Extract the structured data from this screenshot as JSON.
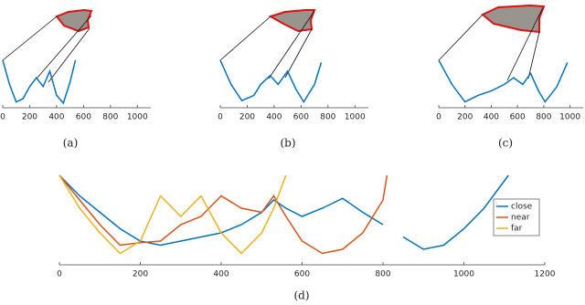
{
  "chart_data": [
    {
      "type": "line",
      "caption": "(a)",
      "xlim": [
        0,
        1100
      ],
      "ylim": [
        0,
        1
      ],
      "xticks": [
        0,
        200,
        400,
        600,
        800,
        1000
      ],
      "x": [
        0,
        50,
        100,
        150,
        200,
        250,
        300,
        350,
        400,
        450,
        500,
        540
      ],
      "series": [
        {
          "color": "#0072bd",
          "values": [
            1,
            0.45,
            0.05,
            0.12,
            0.4,
            0.6,
            0.4,
            0.75,
            0.2,
            0.02,
            0.5,
            1
          ]
        }
      ]
    },
    {
      "type": "line",
      "caption": "(b)",
      "xlim": [
        0,
        1100
      ],
      "ylim": [
        0,
        1
      ],
      "xticks": [
        0,
        200,
        400,
        600,
        800,
        1000
      ],
      "x": [
        0,
        80,
        160,
        250,
        300,
        370,
        430,
        500,
        560,
        620,
        700,
        750
      ],
      "series": [
        {
          "color": "#0072bd",
          "values": [
            1,
            0.45,
            0.08,
            0.2,
            0.45,
            0.65,
            0.45,
            0.75,
            0.35,
            0.05,
            0.45,
            0.95
          ]
        }
      ]
    },
    {
      "type": "line",
      "caption": "(c)",
      "xlim": [
        0,
        1100
      ],
      "ylim": [
        0,
        1
      ],
      "xticks": [
        0,
        200,
        400,
        600,
        800,
        1000
      ],
      "x": [
        0,
        100,
        200,
        300,
        400,
        500,
        570,
        640,
        700,
        760,
        810,
        900,
        980
      ],
      "series": [
        {
          "color": "#0072bd",
          "values": [
            1,
            0.45,
            0.05,
            0.2,
            0.3,
            0.45,
            0.6,
            0.45,
            0.7,
            0.3,
            0.05,
            0.4,
            0.95
          ]
        }
      ]
    },
    {
      "type": "line",
      "caption": "(d)",
      "xlim": [
        0,
        1200
      ],
      "ylim": [
        0,
        1
      ],
      "xticks": [
        0,
        200,
        400,
        600,
        800,
        1000,
        1200
      ],
      "legend": "upper right",
      "x": [
        0,
        50,
        100,
        150,
        200,
        250,
        300,
        350,
        400,
        450,
        500,
        530,
        560,
        600,
        650,
        700,
        750,
        800,
        810,
        850,
        900,
        950,
        1000,
        1050,
        1110
      ],
      "series": [
        {
          "name": "close",
          "color": "#0072bd",
          "values": [
            1,
            0.75,
            0.55,
            0.35,
            0.2,
            0.15,
            0.2,
            0.25,
            0.3,
            0.4,
            0.55,
            0.7,
            0.6,
            0.5,
            0.6,
            0.72,
            0.55,
            0.4,
            null,
            0.25,
            0.1,
            0.15,
            0.35,
            0.6,
            1
          ]
        },
        {
          "name": "near",
          "color": "#d95319",
          "values": [
            1,
            0.7,
            0.4,
            0.15,
            0.18,
            0.2,
            0.4,
            0.5,
            0.75,
            0.6,
            0.55,
            0.75,
            0.5,
            0.2,
            0.05,
            0.1,
            0.3,
            0.7,
            1,
            null,
            null,
            null,
            null,
            null,
            null
          ]
        },
        {
          "name": "far",
          "color": "#edb120",
          "values": [
            1,
            0.6,
            0.3,
            0.05,
            0.2,
            0.75,
            0.5,
            0.75,
            0.3,
            0.05,
            0.3,
            0.6,
            1,
            null,
            null,
            null,
            null,
            null,
            null,
            null,
            null,
            null,
            null,
            null,
            null
          ]
        }
      ]
    }
  ]
}
